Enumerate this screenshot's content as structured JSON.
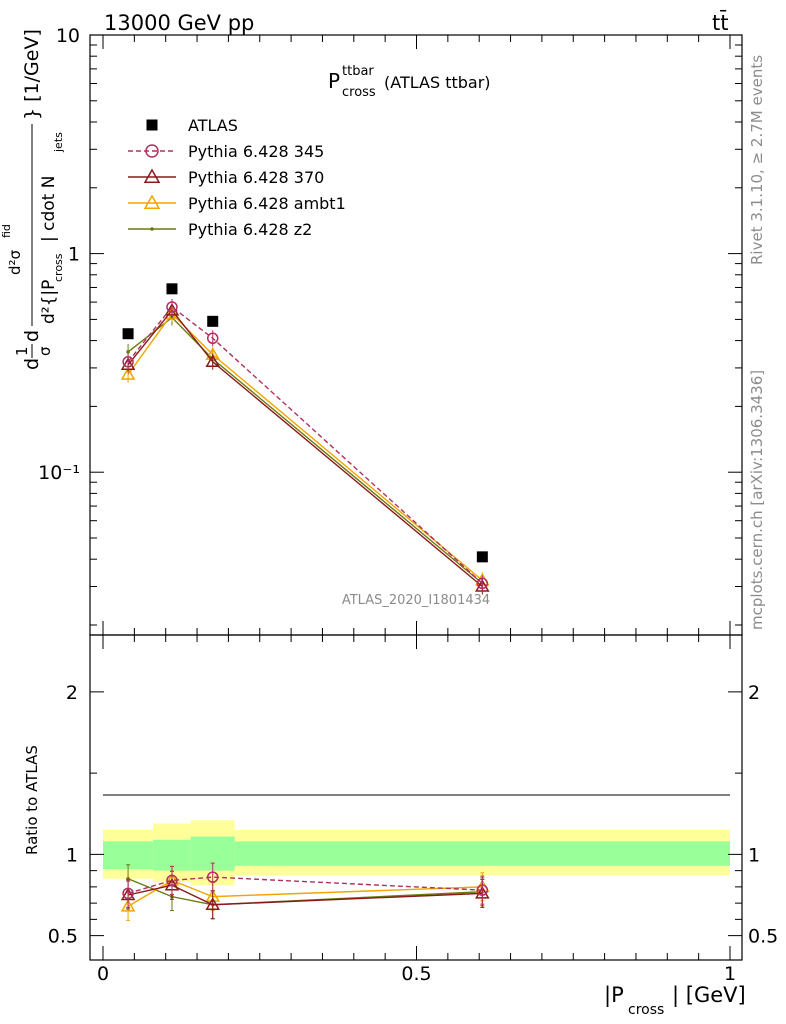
{
  "header": {
    "energy_label": "13000 GeV pp",
    "process_label": "tt̄"
  },
  "side_labels": {
    "rivet": "Rivet 3.1.10, ≥ 2.7M events",
    "mcplots": "mcplots.cern.ch [arXiv:1306.3436]"
  },
  "chart_data": [
    {
      "type": "line",
      "title_main": "P",
      "title_sup": "ttbar",
      "title_sub": "cross",
      "title_rest": "(ATLAS ttbar)",
      "watermark": "ATLAS_2020_I1801434",
      "ylabel_parts": {
        "a": "d",
        "b": "1",
        "c": "σ",
        "d": "d",
        "e": "d²σ",
        "e_sup": "fid",
        "f": "d²{|P",
        "f_sub": "cross",
        "g": "| cdot N",
        "g_sub": "jets",
        "h": "} [1/GeV]"
      },
      "yscale": "log",
      "ylim": [
        0.018,
        10
      ],
      "xlim": [
        -0.02,
        1.0
      ],
      "ytick_labels": [
        "10",
        "1",
        "10⁻¹"
      ],
      "ytick_values": [
        10,
        1,
        0.1
      ],
      "legend_position": "top-left",
      "series": [
        {
          "name": "ATLAS",
          "color": "#000000",
          "marker": "square",
          "dashed": false,
          "x": [
            0.04,
            0.11,
            0.175,
            0.605
          ],
          "y": [
            0.43,
            0.69,
            0.49,
            0.041
          ]
        },
        {
          "name": "Pythia 6.428 345",
          "color": "#b03060",
          "marker": "circle",
          "dashed": true,
          "x": [
            0.04,
            0.11,
            0.175,
            0.605
          ],
          "y": [
            0.32,
            0.57,
            0.41,
            0.031
          ]
        },
        {
          "name": "Pythia 6.428 370",
          "color": "#8b1a1a",
          "marker": "triangle",
          "dashed": false,
          "x": [
            0.04,
            0.11,
            0.175,
            0.605
          ],
          "y": [
            0.31,
            0.55,
            0.32,
            0.03
          ]
        },
        {
          "name": "Pythia 6.428 ambt1",
          "color": "#f0a500",
          "marker": "triangle",
          "dashed": false,
          "x": [
            0.04,
            0.11,
            0.175,
            0.605
          ],
          "y": [
            0.28,
            0.53,
            0.345,
            0.032
          ]
        },
        {
          "name": "Pythia 6.428 z2",
          "color": "#6b7a0f",
          "marker": "dot",
          "dashed": false,
          "x": [
            0.04,
            0.11,
            0.175,
            0.605
          ],
          "y": [
            0.355,
            0.51,
            0.33,
            0.031
          ]
        }
      ]
    },
    {
      "type": "line",
      "ylabel": "Ratio to ATLAS",
      "xlabel_main": "|P",
      "xlabel_sub": "cross",
      "xlabel_rest": "| [GeV]",
      "ylim": [
        0.35,
        2.35
      ],
      "xlim": [
        -0.02,
        1.0
      ],
      "ytick_labels": [
        "2",
        "1",
        "0.5"
      ],
      "ytick_values": [
        2,
        1,
        0.5
      ],
      "xtick_labels": [
        "0",
        "0.5",
        "1"
      ],
      "xtick_values": [
        0,
        0.5,
        1
      ],
      "uncertainty_bands": [
        {
          "x0": 0.0,
          "x1": 0.08,
          "inner": [
            0.91,
            1.08
          ],
          "outer": [
            0.85,
            1.15
          ]
        },
        {
          "x0": 0.08,
          "x1": 0.14,
          "inner": [
            0.9,
            1.09
          ],
          "outer": [
            0.83,
            1.19
          ]
        },
        {
          "x0": 0.14,
          "x1": 0.21,
          "inner": [
            0.9,
            1.11
          ],
          "outer": [
            0.81,
            1.21
          ]
        },
        {
          "x0": 0.21,
          "x1": 1.0,
          "inner": [
            0.93,
            1.08
          ],
          "outer": [
            0.87,
            1.15
          ]
        }
      ],
      "series": [
        {
          "name": "Pythia 6.428 345",
          "color": "#b03060",
          "marker": "circle",
          "dashed": true,
          "x": [
            0.04,
            0.11,
            0.175,
            0.605
          ],
          "y": [
            0.76,
            0.84,
            0.86,
            0.78
          ]
        },
        {
          "name": "Pythia 6.428 370",
          "color": "#8b1a1a",
          "marker": "triangle",
          "dashed": false,
          "x": [
            0.04,
            0.11,
            0.175,
            0.605
          ],
          "y": [
            0.75,
            0.81,
            0.69,
            0.76
          ]
        },
        {
          "name": "Pythia 6.428 ambt1",
          "color": "#f0a500",
          "marker": "triangle",
          "dashed": false,
          "x": [
            0.04,
            0.11,
            0.175,
            0.605
          ],
          "y": [
            0.68,
            0.84,
            0.74,
            0.8
          ]
        },
        {
          "name": "Pythia 6.428 z2",
          "color": "#6b7a0f",
          "marker": "dot",
          "dashed": false,
          "x": [
            0.04,
            0.11,
            0.175,
            0.605
          ],
          "y": [
            0.85,
            0.74,
            0.69,
            0.77
          ]
        }
      ]
    }
  ]
}
